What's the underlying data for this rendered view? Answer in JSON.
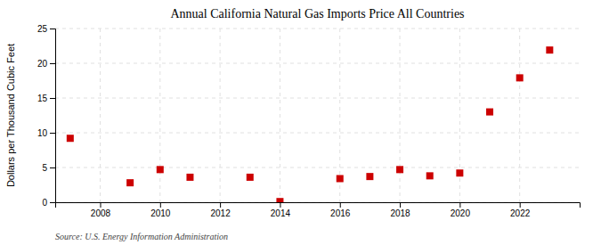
{
  "chart_data": {
    "type": "scatter",
    "title": "Annual California Natural Gas Imports Price All Countries",
    "ylabel": "Dollars per Thousand Cubic Feet",
    "source": "Source: U.S. Energy Information Administration",
    "x": [
      2007,
      2009,
      2010,
      2011,
      2013,
      2014,
      2016,
      2017,
      2018,
      2019,
      2020,
      2021,
      2022,
      2023
    ],
    "values": [
      9.2,
      2.8,
      4.7,
      3.6,
      3.6,
      0.1,
      3.4,
      3.7,
      4.7,
      3.8,
      4.2,
      13.0,
      17.9,
      21.9
    ],
    "color": "#cc0000",
    "marker": "square",
    "xlim": [
      2006.5,
      2024.0
    ],
    "ylim": [
      0,
      25
    ],
    "xticks": [
      2008,
      2010,
      2012,
      2014,
      2016,
      2018,
      2020,
      2022
    ],
    "yticks": [
      0,
      5,
      10,
      15,
      20,
      25
    ],
    "grid": true
  }
}
